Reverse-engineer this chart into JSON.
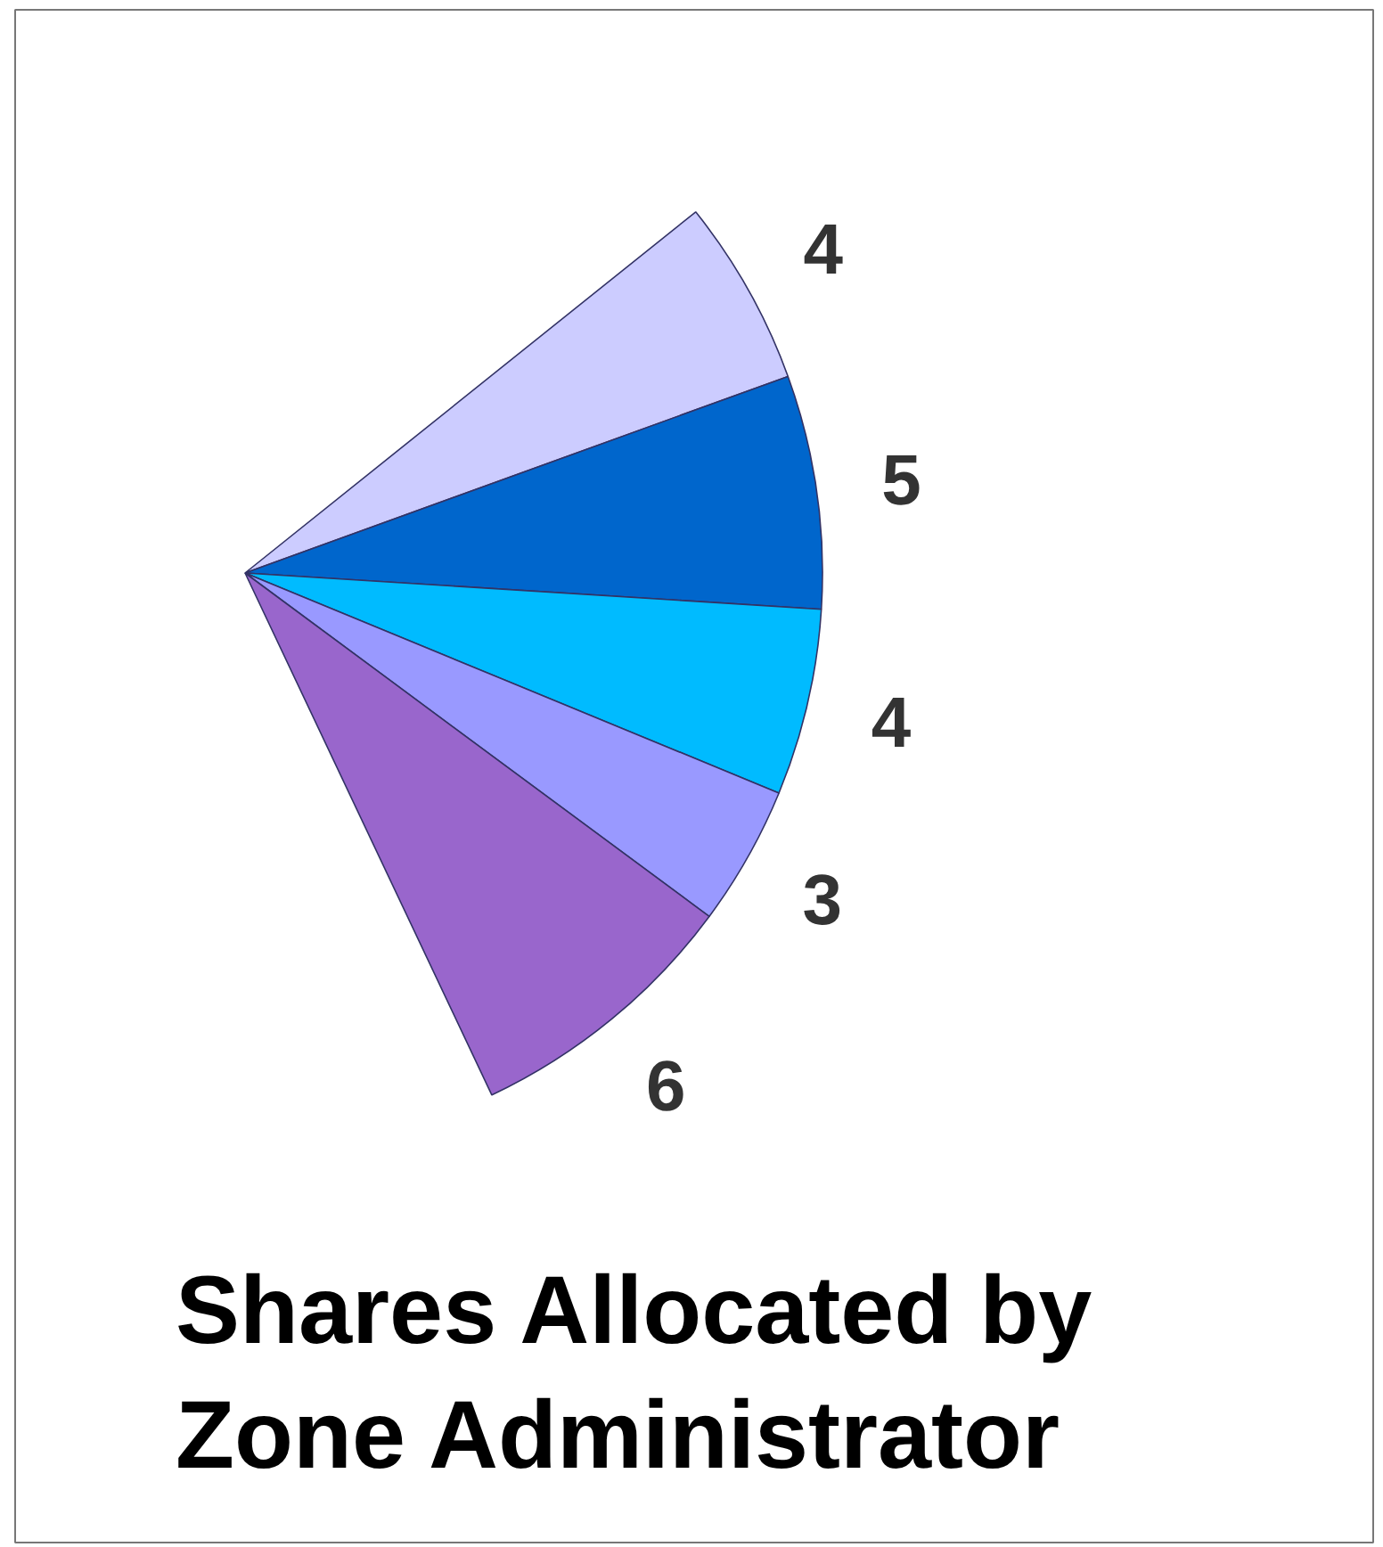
{
  "chart_data": {
    "type": "pie",
    "title": "Shares Allocated by Zone Administrator",
    "categories": [
      null,
      null,
      null,
      null,
      null
    ],
    "values": [
      4,
      5,
      4,
      3,
      6
    ],
    "colors": [
      "#ccccff",
      "#0066cc",
      "#00bbff",
      "#9999ff",
      "#9966cc"
    ],
    "data_labels": true
  }
}
